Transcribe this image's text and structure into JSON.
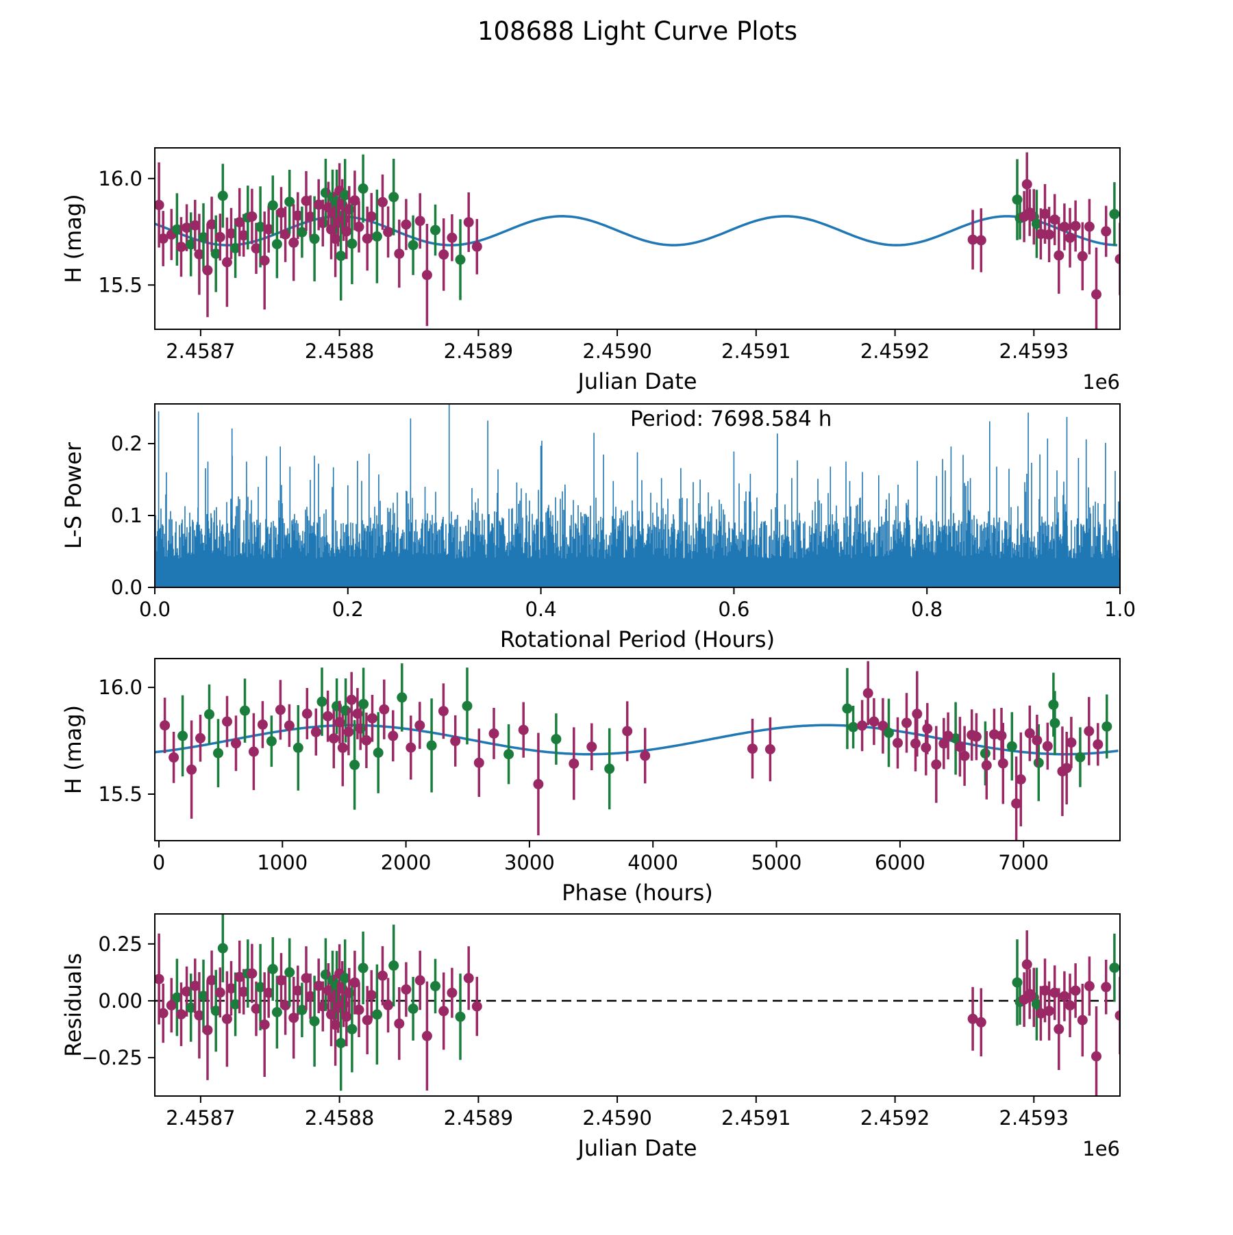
{
  "chart_data": {
    "type": "line",
    "title": "108688 Light Curve Plots",
    "colors": {
      "fit_curve": "#1f77b4",
      "periodogram": "#1f77b4",
      "series_purple": "#9a2864",
      "series_green": "#1a7d3c",
      "axis": "#000000",
      "zero_line": "#000000"
    },
    "model": {
      "mean_mag": 15.755,
      "amplitude_mag": 0.068,
      "period_hours": 7698.584,
      "fit_period_hours": 3849.292,
      "fit_period_days": 160.387,
      "jd_peak_days": 2458800,
      "phase_epoch_jd_days": 2458735
    },
    "observations": [
      [
        2458670,
        15.876,
        0.2,
        "p"
      ],
      [
        2458673,
        15.718,
        0.13,
        "p"
      ],
      [
        2458679,
        15.737,
        0.12,
        "p"
      ],
      [
        2458683,
        15.761,
        0.17,
        "g"
      ],
      [
        2458686,
        15.679,
        0.14,
        "p"
      ],
      [
        2458690,
        15.769,
        0.11,
        "p"
      ],
      [
        2458693,
        15.691,
        0.15,
        "g"
      ],
      [
        2458696,
        15.78,
        0.12,
        "p"
      ],
      [
        2458699,
        15.644,
        0.19,
        "p"
      ],
      [
        2458702,
        15.724,
        0.16,
        "g"
      ],
      [
        2458705,
        15.569,
        0.22,
        "p"
      ],
      [
        2458708,
        15.785,
        0.13,
        "p"
      ],
      [
        2458711,
        15.647,
        0.18,
        "g"
      ],
      [
        2458714,
        15.725,
        0.11,
        "p"
      ],
      [
        2458716,
        15.919,
        0.15,
        "g"
      ],
      [
        2458719,
        15.607,
        0.21,
        "p"
      ],
      [
        2458722,
        15.742,
        0.12,
        "p"
      ],
      [
        2458725,
        15.673,
        0.14,
        "g"
      ],
      [
        2458728,
        15.795,
        0.16,
        "p"
      ],
      [
        2458731,
        15.733,
        0.1,
        "p"
      ],
      [
        2458734,
        15.817,
        0.15,
        "g"
      ],
      [
        2458737,
        15.822,
        0.13,
        "p"
      ],
      [
        2458740,
        15.672,
        0.12,
        "p"
      ],
      [
        2458743,
        15.773,
        0.19,
        "g"
      ],
      [
        2458746,
        15.615,
        0.23,
        "p"
      ],
      [
        2458749,
        15.762,
        0.11,
        "p"
      ],
      [
        2458752,
        15.874,
        0.14,
        "g"
      ],
      [
        2458755,
        15.692,
        0.16,
        "g"
      ],
      [
        2458758,
        15.84,
        0.12,
        "p"
      ],
      [
        2458761,
        15.738,
        0.13,
        "p"
      ],
      [
        2458764,
        15.891,
        0.15,
        "g"
      ],
      [
        2458767,
        15.699,
        0.18,
        "p"
      ],
      [
        2458770,
        15.826,
        0.11,
        "p"
      ],
      [
        2458773,
        15.748,
        0.12,
        "g"
      ],
      [
        2458776,
        15.895,
        0.14,
        "p"
      ],
      [
        2458779,
        15.821,
        0.1,
        "p"
      ],
      [
        2458782,
        15.717,
        0.2,
        "g"
      ],
      [
        2458785,
        15.877,
        0.12,
        "p"
      ],
      [
        2458788,
        15.791,
        0.11,
        "p"
      ],
      [
        2458790,
        15.933,
        0.16,
        "g"
      ],
      [
        2458792,
        15.865,
        0.12,
        "p"
      ],
      [
        2458794,
        15.761,
        0.14,
        "p"
      ],
      [
        2458795,
        15.912,
        0.13,
        "g"
      ],
      [
        2458796,
        15.837,
        0.1,
        "p"
      ],
      [
        2458797,
        15.717,
        0.18,
        "p"
      ],
      [
        2458798,
        15.892,
        0.15,
        "g"
      ],
      [
        2458799,
        15.792,
        0.11,
        "p"
      ],
      [
        2458800,
        15.942,
        0.13,
        "p"
      ],
      [
        2458801,
        15.637,
        0.21,
        "g"
      ],
      [
        2458802,
        15.877,
        0.12,
        "p"
      ],
      [
        2458803,
        15.807,
        0.1,
        "p"
      ],
      [
        2458804,
        15.922,
        0.17,
        "g"
      ],
      [
        2458805,
        15.752,
        0.13,
        "p"
      ],
      [
        2458807,
        15.855,
        0.11,
        "p"
      ],
      [
        2458809,
        15.694,
        0.19,
        "g"
      ],
      [
        2458811,
        15.897,
        0.14,
        "p"
      ],
      [
        2458814,
        15.773,
        0.12,
        "p"
      ],
      [
        2458817,
        15.953,
        0.16,
        "g"
      ],
      [
        2458820,
        15.718,
        0.15,
        "p"
      ],
      [
        2458823,
        15.822,
        0.11,
        "p"
      ],
      [
        2458827,
        15.728,
        0.22,
        "g"
      ],
      [
        2458831,
        15.889,
        0.13,
        "p"
      ],
      [
        2458835,
        15.749,
        0.12,
        "p"
      ],
      [
        2458839,
        15.913,
        0.18,
        "g"
      ],
      [
        2458843,
        15.647,
        0.16,
        "p"
      ],
      [
        2458848,
        15.784,
        0.12,
        "p"
      ],
      [
        2458853,
        15.687,
        0.14,
        "g"
      ],
      [
        2458858,
        15.801,
        0.13,
        "p"
      ],
      [
        2458863,
        15.547,
        0.24,
        "p"
      ],
      [
        2458869,
        15.758,
        0.12,
        "g"
      ],
      [
        2458875,
        15.643,
        0.17,
        "p"
      ],
      [
        2458881,
        15.722,
        0.11,
        "p"
      ],
      [
        2458887,
        15.619,
        0.19,
        "g"
      ],
      [
        2458893,
        15.795,
        0.14,
        "p"
      ],
      [
        2458899,
        15.68,
        0.13,
        "p"
      ],
      [
        2459256,
        15.713,
        0.14,
        "p"
      ],
      [
        2459262,
        15.71,
        0.15,
        "p"
      ],
      [
        2459288,
        15.901,
        0.19,
        "g"
      ],
      [
        2459290,
        15.814,
        0.1,
        "g"
      ],
      [
        2459293,
        15.821,
        0.12,
        "p"
      ],
      [
        2459295,
        15.973,
        0.15,
        "p"
      ],
      [
        2459297,
        15.84,
        0.11,
        "p"
      ],
      [
        2459300,
        15.82,
        0.13,
        "p"
      ],
      [
        2459302,
        15.787,
        0.16,
        "g"
      ],
      [
        2459305,
        15.74,
        0.12,
        "p"
      ],
      [
        2459308,
        15.834,
        0.14,
        "p"
      ],
      [
        2459311,
        15.737,
        0.13,
        "p"
      ],
      [
        2459315,
        15.807,
        0.12,
        "p"
      ],
      [
        2459318,
        15.639,
        0.18,
        "p"
      ],
      [
        2459322,
        15.773,
        0.11,
        "p"
      ],
      [
        2459326,
        15.722,
        0.14,
        "p"
      ],
      [
        2459330,
        15.777,
        0.12,
        "p"
      ],
      [
        2459335,
        15.635,
        0.16,
        "p"
      ],
      [
        2459340,
        15.774,
        0.13,
        "p"
      ],
      [
        2459345,
        15.456,
        0.22,
        "p"
      ],
      [
        2459352,
        15.752,
        0.12,
        "p"
      ],
      [
        2459358,
        15.833,
        0.15,
        "g"
      ],
      [
        2459362,
        15.622,
        0.17,
        "p"
      ]
    ],
    "subplots": {
      "light_curve": {
        "xlabel": "Julian Date",
        "ylabel": "H (mag)",
        "x_offset_label": "1e6",
        "x_ticks": [
          "2.4587",
          "2.4588",
          "2.4589",
          "2.4590",
          "2.4591",
          "2.4592",
          "2.4593"
        ],
        "x_tick_values": [
          2458700,
          2458800,
          2458900,
          2459000,
          2459100,
          2459200,
          2459300
        ],
        "y_ticks": [
          "16.0",
          "15.5"
        ],
        "y_tick_values": [
          16.0,
          15.5
        ],
        "x_range": [
          2458667,
          2459362
        ],
        "y_range": [
          15.292,
          16.144
        ]
      },
      "periodogram": {
        "xlabel": "Rotational Period (Hours)",
        "ylabel": "L-S Power",
        "annotation": "Period: 7698.584 h",
        "x_ticks": [
          "0.0",
          "0.2",
          "0.4",
          "0.6",
          "0.8",
          "1.0"
        ],
        "x_tick_values": [
          0,
          0.2,
          0.4,
          0.6,
          0.8,
          1.0
        ],
        "y_ticks": [
          "0.0",
          "0.1",
          "0.2"
        ],
        "y_tick_values": [
          0,
          0.1,
          0.2
        ],
        "x_range": [
          0,
          1
        ],
        "y_range": [
          0,
          0.2552
        ],
        "noise_seed": 42,
        "peaks": [
          [
            0.004,
            0.245
          ],
          [
            0.012,
            0.16
          ],
          [
            0.045,
            0.243
          ],
          [
            0.055,
            0.175
          ],
          [
            0.08,
            0.221
          ],
          [
            0.095,
            0.175
          ],
          [
            0.13,
            0.196
          ],
          [
            0.14,
            0.168
          ],
          [
            0.185,
            0.167
          ],
          [
            0.2,
            0.142
          ],
          [
            0.21,
            0.176
          ],
          [
            0.222,
            0.186
          ],
          [
            0.232,
            0.157
          ],
          [
            0.265,
            0.235
          ],
          [
            0.28,
            0.14
          ],
          [
            0.305,
            0.2552
          ],
          [
            0.345,
            0.232
          ],
          [
            0.375,
            0.146
          ],
          [
            0.4,
            0.197
          ],
          [
            0.425,
            0.143
          ],
          [
            0.455,
            0.215
          ],
          [
            0.475,
            0.148
          ],
          [
            0.5,
            0.188
          ],
          [
            0.525,
            0.152
          ],
          [
            0.545,
            0.166
          ],
          [
            0.565,
            0.15
          ],
          [
            0.6,
            0.189
          ],
          [
            0.617,
            0.158
          ],
          [
            0.645,
            0.214
          ],
          [
            0.66,
            0.152
          ],
          [
            0.7,
            0.168
          ],
          [
            0.72,
            0.148
          ],
          [
            0.75,
            0.156
          ],
          [
            0.79,
            0.176
          ],
          [
            0.81,
            0.155
          ],
          [
            0.825,
            0.196
          ],
          [
            0.845,
            0.152
          ],
          [
            0.865,
            0.231
          ],
          [
            0.885,
            0.165
          ],
          [
            0.905,
            0.243
          ],
          [
            0.917,
            0.185
          ],
          [
            0.925,
            0.207
          ],
          [
            0.945,
            0.237
          ],
          [
            0.957,
            0.18
          ],
          [
            0.965,
            0.206
          ],
          [
            0.985,
            0.201
          ],
          [
            0.995,
            0.162
          ]
        ]
      },
      "phase": {
        "xlabel": "Phase (hours)",
        "ylabel": "H (mag)",
        "x_ticks": [
          "0",
          "1000",
          "2000",
          "3000",
          "4000",
          "5000",
          "6000",
          "7000"
        ],
        "x_tick_values": [
          0,
          1000,
          2000,
          3000,
          4000,
          5000,
          6000,
          7000
        ],
        "y_ticks": [
          "16.0",
          "15.5"
        ],
        "y_tick_values": [
          16.0,
          15.5
        ],
        "x_range": [
          -33,
          7781
        ],
        "y_range": [
          15.282,
          16.135
        ]
      },
      "residuals": {
        "xlabel": "Julian Date",
        "ylabel": "Residuals",
        "x_offset_label": "1e6",
        "x_ticks": [
          "2.4587",
          "2.4588",
          "2.4589",
          "2.4590",
          "2.4591",
          "2.4592",
          "2.4593"
        ],
        "x_tick_values": [
          2458700,
          2458800,
          2458900,
          2459000,
          2459100,
          2459200,
          2459300
        ],
        "y_ticks": [
          "0.25",
          "0.00",
          "−0.25"
        ],
        "y_tick_values": [
          0.25,
          0.0,
          -0.25
        ],
        "x_range": [
          2458667,
          2459362
        ],
        "y_range": [
          -0.419,
          0.382
        ],
        "zero_line_value": 0.0
      }
    }
  }
}
